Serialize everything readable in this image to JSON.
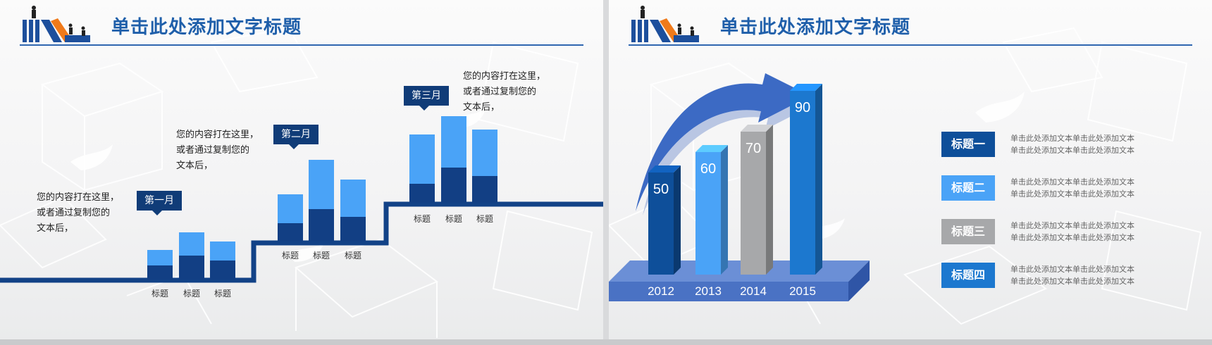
{
  "left": {
    "title": "单击此处添加文字标题",
    "months": [
      "第一月",
      "第二月",
      "第三月"
    ],
    "notes": [
      "您的内容打在这里，\n或者通过复制您的\n文本后，",
      "您的内容打在这里，\n或者通过复制您的\n文本后，",
      "您的内容打在这里，\n或者通过复制您的\n文本后，"
    ],
    "bar_label": "标题"
  },
  "right": {
    "title": "单击此处添加文字标题",
    "legend": [
      {
        "label": "标题一",
        "color": "#0e4f9a"
      },
      {
        "label": "标题二",
        "color": "#4aa3f7"
      },
      {
        "label": "标题三",
        "color": "#a7a8aa"
      },
      {
        "label": "标题四",
        "color": "#1c78cf"
      }
    ],
    "legend_desc": "单击此处添加文本单击此处添加文本\n单击此处添加文本单击此处添加文本"
  },
  "chart_data": {
    "type": "bar",
    "categories": [
      "2012",
      "2013",
      "2014",
      "2015"
    ],
    "values": [
      50,
      60,
      70,
      90
    ],
    "colors": [
      "#0e4f9a",
      "#4aa3f7",
      "#a7a8aa",
      "#1c78cf"
    ]
  },
  "colors": {
    "accent": "#1f5faa",
    "dark_blue": "#123f84",
    "light_blue": "#4aa3f7",
    "orange": "#f07a1a"
  }
}
